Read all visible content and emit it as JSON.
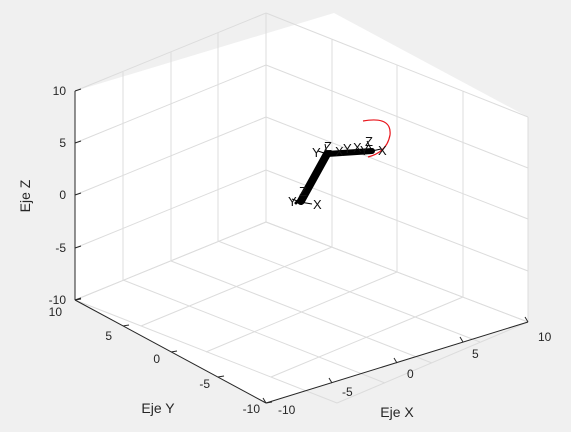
{
  "chart_data": {
    "type": "line3d",
    "title": "",
    "xlabel": "Eje X",
    "ylabel": "Eje Y",
    "zlabel": "Eje Z",
    "xlim": [
      -10,
      10
    ],
    "ylim": [
      -10,
      10
    ],
    "zlim": [
      -10,
      10
    ],
    "x_ticks": [
      "-10",
      "-5",
      "0",
      "5",
      "10"
    ],
    "y_ticks": [
      "-10",
      "-5",
      "0",
      "5",
      "10"
    ],
    "z_ticks": [
      "-10",
      "-5",
      "0",
      "5",
      "10"
    ],
    "grid": true,
    "background_color": "#ffffff",
    "figure_color": "#f0f0f0",
    "grid_color": "#dcdcdc",
    "arm_color": "#000000",
    "trajectory_color": "#e8141b",
    "arm_links": [
      {
        "from": "base",
        "to": "shoulder"
      },
      {
        "from": "shoulder",
        "to": "elbow"
      },
      {
        "from": "elbow",
        "to": "wrist"
      }
    ],
    "frame_labels": [
      {
        "text": "Z",
        "at": "base"
      },
      {
        "text": "X",
        "at": "base"
      },
      {
        "text": "Y",
        "at": "base"
      },
      {
        "text": "Z",
        "at": "shoulder"
      },
      {
        "text": "Y",
        "at": "shoulder"
      },
      {
        "text": "X",
        "at": "shoulder"
      },
      {
        "text": "Y",
        "at": "elbow"
      },
      {
        "text": "X",
        "at": "elbow"
      },
      {
        "text": "Z",
        "at": "wrist"
      },
      {
        "text": "Y",
        "at": "wrist"
      },
      {
        "text": "X",
        "at": "wrist"
      }
    ],
    "trajectory": "arc-near-end-effector"
  }
}
